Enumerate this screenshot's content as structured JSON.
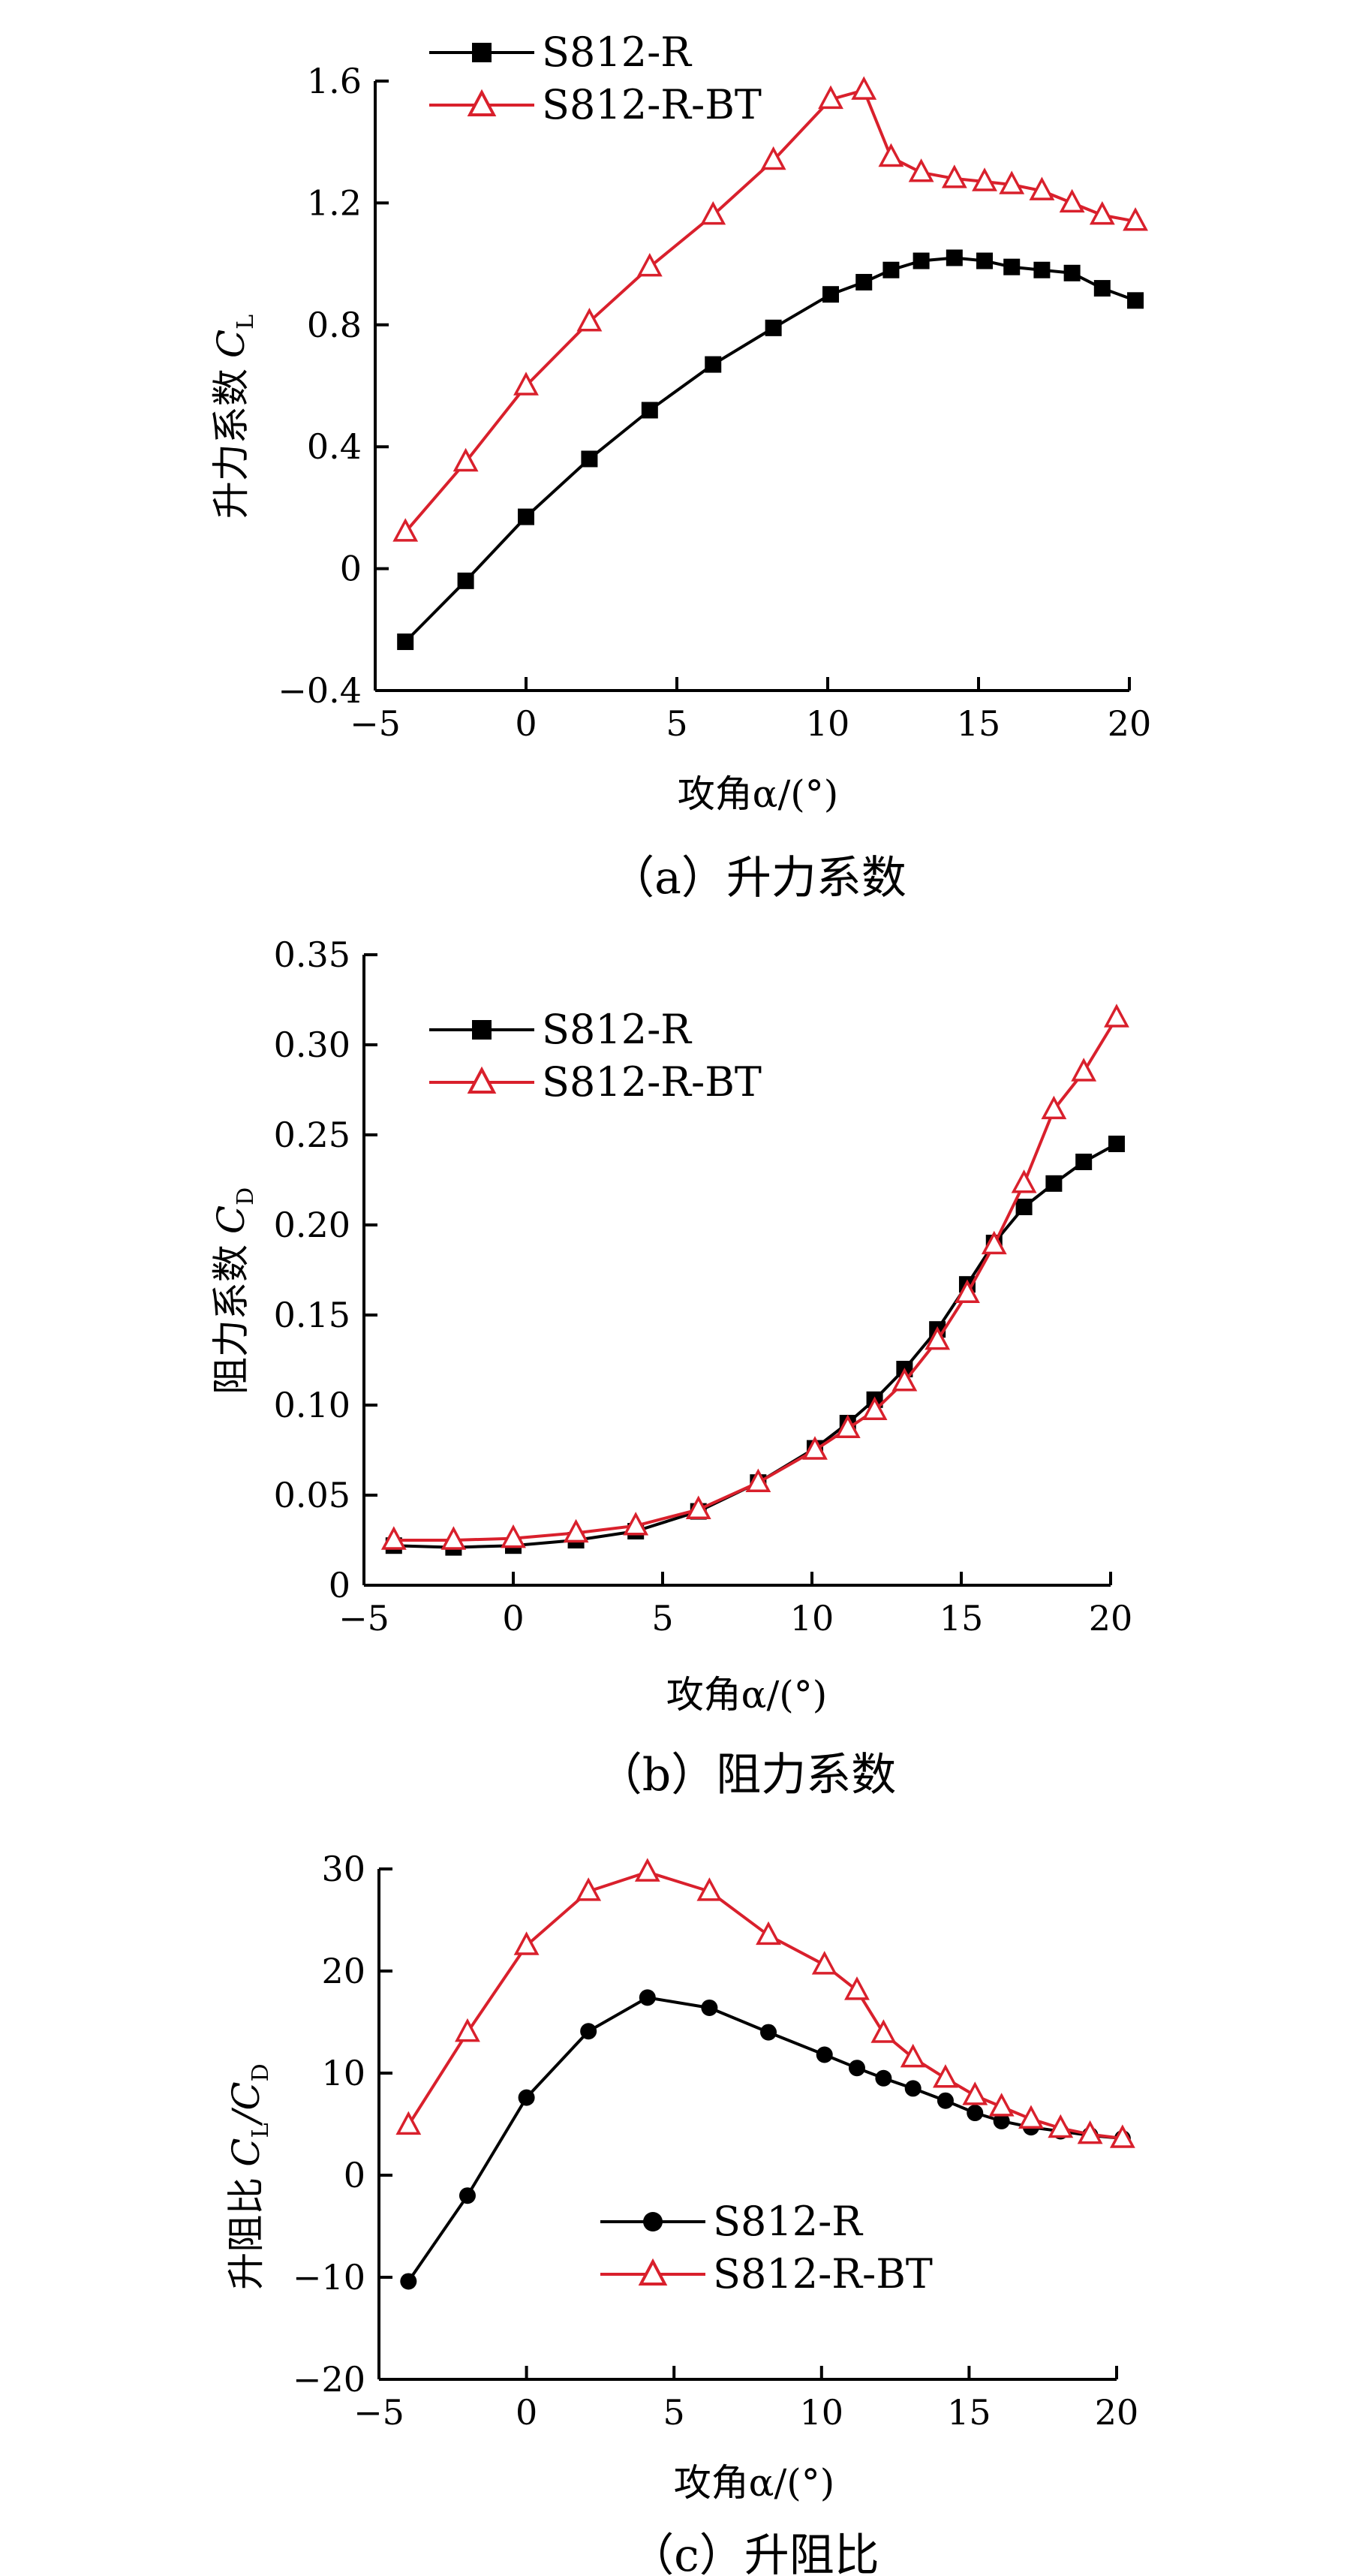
{
  "colors": {
    "black_series": "#000000",
    "red_series": "#d9202c"
  },
  "chart_data": [
    {
      "type": "line",
      "caption": "（a）升力系数",
      "xlabel": "攻角α/(°)",
      "ylabel": "升力系数",
      "ylabel_symbol": "C",
      "ylabel_sub": "L",
      "xlim": [
        -5,
        20
      ],
      "ylim": [
        -0.4,
        1.6
      ],
      "xticks": [
        -5,
        0,
        5,
        10,
        15,
        20
      ],
      "yticks": [
        -0.4,
        0,
        0.4,
        0.8,
        1.2,
        1.6
      ],
      "xtick_labels": [
        "−5",
        "0",
        "5",
        "10",
        "15",
        "20"
      ],
      "ytick_labels": [
        "−0.4",
        "0",
        "0.4",
        "0.8",
        "1.2",
        "1.6"
      ],
      "legend_position": "top-left",
      "series": [
        {
          "name": "S812-R",
          "color": "#000000",
          "marker": "square",
          "x": [
            -4,
            -2,
            0,
            2.1,
            4.1,
            6.2,
            8.2,
            10.1,
            11.2,
            12.1,
            13.1,
            14.2,
            15.2,
            16.1,
            17.1,
            18.1,
            19.1,
            20.2
          ],
          "y": [
            -0.24,
            -0.04,
            0.17,
            0.36,
            0.52,
            0.67,
            0.79,
            0.9,
            0.94,
            0.98,
            1.01,
            1.02,
            1.01,
            0.99,
            0.98,
            0.97,
            0.92,
            0.88
          ]
        },
        {
          "name": "S812-R-BT",
          "color": "#d9202c",
          "marker": "triangle",
          "x": [
            -4,
            -2,
            0,
            2.1,
            4.1,
            6.2,
            8.2,
            10.1,
            11.2,
            12.1,
            13.1,
            14.2,
            15.2,
            16.1,
            17.1,
            18.1,
            19.1,
            20.2
          ],
          "y": [
            0.12,
            0.35,
            0.6,
            0.81,
            0.99,
            1.16,
            1.34,
            1.54,
            1.57,
            1.35,
            1.3,
            1.28,
            1.27,
            1.26,
            1.24,
            1.2,
            1.16,
            1.14
          ]
        }
      ]
    },
    {
      "type": "line",
      "caption": "（b）阻力系数",
      "xlabel": "攻角α/(°)",
      "ylabel": "阻力系数",
      "ylabel_symbol": "C",
      "ylabel_sub": "D",
      "xlim": [
        -5,
        20
      ],
      "ylim": [
        0,
        0.35
      ],
      "xticks": [
        -5,
        0,
        5,
        10,
        15,
        20
      ],
      "yticks": [
        0,
        0.05,
        0.1,
        0.15,
        0.2,
        0.25,
        0.3,
        0.35
      ],
      "xtick_labels": [
        "−5",
        "0",
        "5",
        "10",
        "15",
        "20"
      ],
      "ytick_labels": [
        "0",
        "0.05",
        "0.10",
        "0.15",
        "0.20",
        "0.25",
        "0.30",
        "0.35"
      ],
      "legend_position": "top-left",
      "series": [
        {
          "name": "S812-R",
          "color": "#000000",
          "marker": "square",
          "x": [
            -4,
            -2,
            0,
            2.1,
            4.1,
            6.2,
            8.2,
            10.1,
            11.2,
            12.1,
            13.1,
            14.2,
            15.2,
            16.1,
            17.1,
            18.1,
            19.1,
            20.2
          ],
          "y": [
            0.022,
            0.021,
            0.022,
            0.025,
            0.03,
            0.041,
            0.057,
            0.076,
            0.09,
            0.103,
            0.12,
            0.142,
            0.167,
            0.19,
            0.21,
            0.223,
            0.235,
            0.245
          ]
        },
        {
          "name": "S812-R-BT",
          "color": "#d9202c",
          "marker": "triangle",
          "x": [
            -4,
            -2,
            0,
            2.1,
            4.1,
            6.2,
            8.2,
            10.1,
            11.2,
            12.1,
            13.1,
            14.2,
            15.2,
            16.1,
            17.1,
            18.1,
            19.1,
            20.2
          ],
          "y": [
            0.025,
            0.025,
            0.026,
            0.029,
            0.033,
            0.042,
            0.057,
            0.075,
            0.087,
            0.097,
            0.113,
            0.136,
            0.162,
            0.189,
            0.223,
            0.264,
            0.285,
            0.315
          ]
        }
      ]
    },
    {
      "type": "line",
      "caption": "（c）升阻比",
      "xlabel": "攻角α/(°)",
      "ylabel": "升阻比",
      "ylabel_symbol": "C",
      "ylabel_sub": "L",
      "ylabel_symbol2": "C",
      "ylabel_sub2": "D",
      "xlim": [
        -5,
        20
      ],
      "ylim": [
        -20,
        30
      ],
      "xticks": [
        -5,
        0,
        5,
        10,
        15,
        20
      ],
      "yticks": [
        -20,
        -10,
        0,
        10,
        20,
        30
      ],
      "xtick_labels": [
        "−5",
        "0",
        "5",
        "10",
        "15",
        "20"
      ],
      "ytick_labels": [
        "−20",
        "−10",
        "0",
        "10",
        "20",
        "30"
      ],
      "legend_position": "lower-center",
      "series": [
        {
          "name": "S812-R",
          "color": "#000000",
          "marker": "circle",
          "x": [
            -4,
            -2,
            0,
            2.1,
            4.1,
            6.2,
            8.2,
            10.1,
            11.2,
            12.1,
            13.1,
            14.2,
            15.2,
            16.1,
            17.1,
            18.1,
            19.1,
            20.2
          ],
          "y": [
            -10.4,
            -2,
            7.6,
            14.1,
            17.4,
            16.4,
            14.0,
            11.8,
            10.5,
            9.5,
            8.5,
            7.3,
            6.1,
            5.3,
            4.7,
            4.3,
            3.9,
            3.6
          ]
        },
        {
          "name": "S812-R-BT",
          "color": "#d9202c",
          "marker": "triangle",
          "x": [
            -4,
            -2,
            0,
            2.1,
            4.1,
            6.2,
            8.2,
            10.1,
            11.2,
            12.1,
            13.1,
            14.2,
            15.2,
            16.1,
            17.1,
            18.1,
            19.1,
            20.2
          ],
          "y": [
            4.9,
            14.0,
            22.5,
            27.8,
            29.7,
            27.8,
            23.5,
            20.6,
            18.1,
            13.9,
            11.5,
            9.5,
            7.8,
            6.7,
            5.5,
            4.6,
            4.0,
            3.6
          ]
        }
      ]
    }
  ]
}
